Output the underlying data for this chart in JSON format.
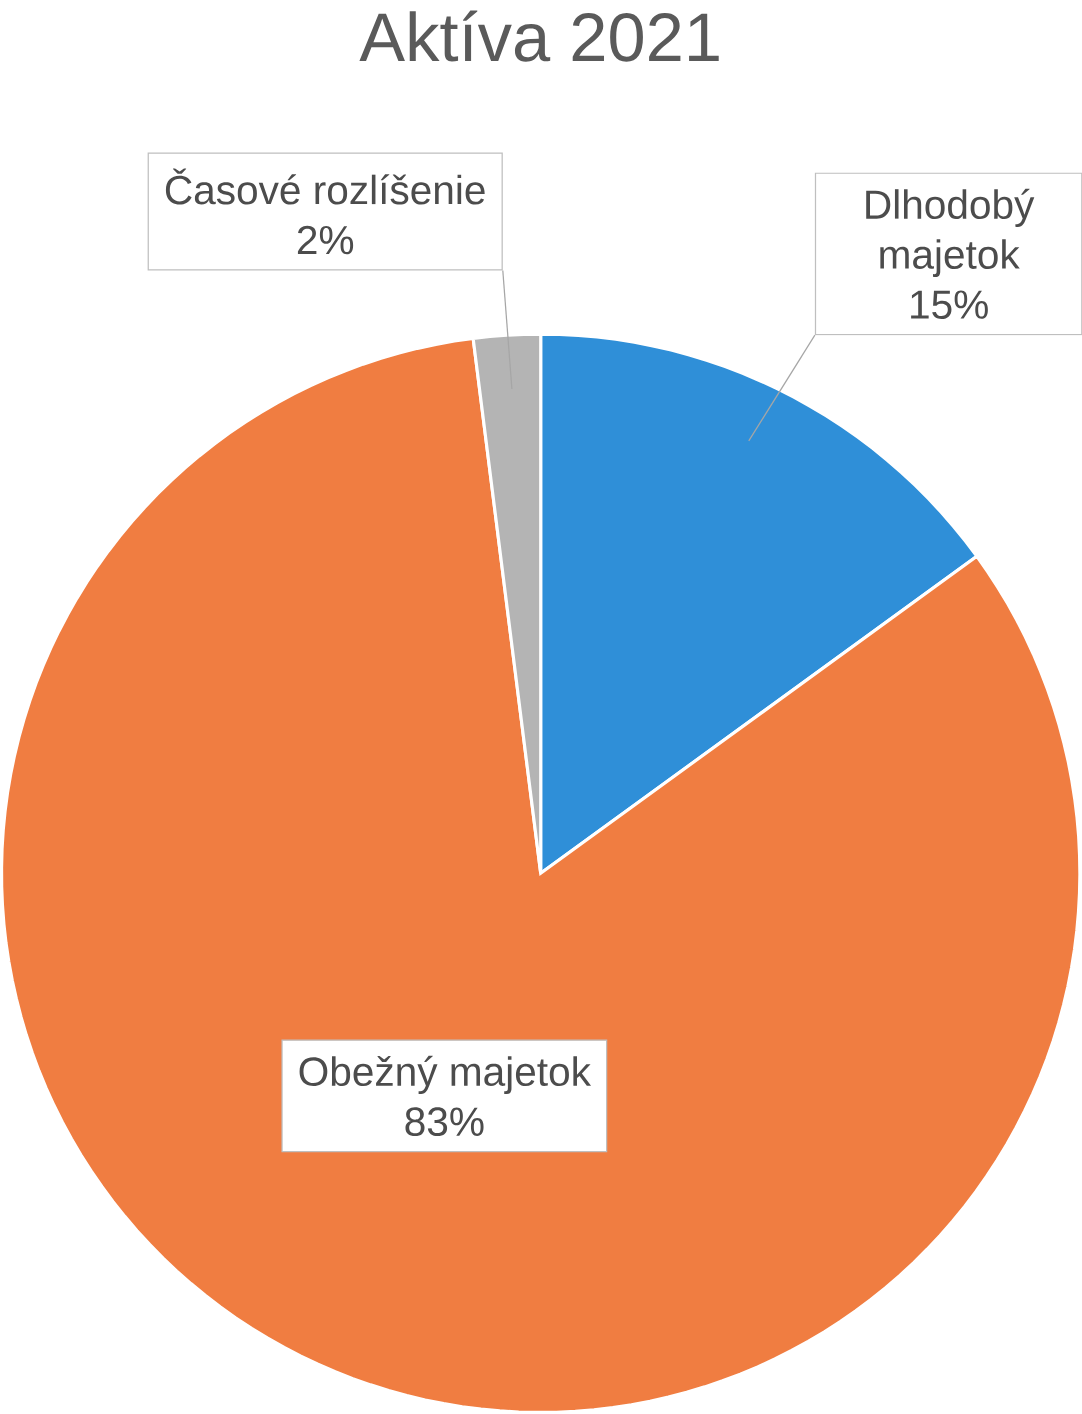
{
  "chart_data": {
    "type": "pie",
    "title": "Aktíva 2021",
    "categories": [
      "Dlhodobý majetok",
      "Obežný majetok",
      "Časové rozlíšenie"
    ],
    "values": [
      15,
      83,
      2
    ],
    "value_labels": [
      "15%",
      "83%",
      "2%"
    ],
    "colors": [
      "#2f8fd8",
      "#f07d41",
      "#b4b4b4"
    ]
  }
}
